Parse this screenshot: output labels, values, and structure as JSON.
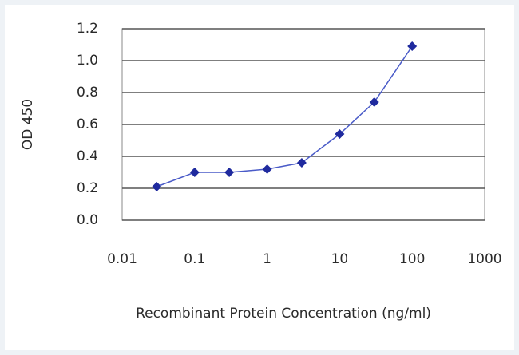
{
  "chart_data": {
    "type": "line",
    "x_label": "Recombinant Protein Concentration (ng/ml)",
    "y_label": "OD 450",
    "x": [
      0.03,
      0.1,
      0.3,
      1,
      3,
      10,
      30,
      100
    ],
    "values": [
      0.21,
      0.3,
      0.3,
      0.32,
      0.36,
      0.54,
      0.74,
      1.09
    ],
    "color": "#1f2a9e",
    "x_log": true,
    "xlim": [
      0.01,
      1000
    ],
    "xticks": [
      0.01,
      0.1,
      1,
      10,
      100,
      1000
    ],
    "ylim": [
      0,
      1.2
    ],
    "yticks": [
      {
        "value": 0,
        "label": "0.0"
      },
      0.2,
      0.4,
      0.6,
      0.8,
      {
        "value": 1,
        "label": "1.0"
      },
      1.2
    ],
    "grid": true
  }
}
